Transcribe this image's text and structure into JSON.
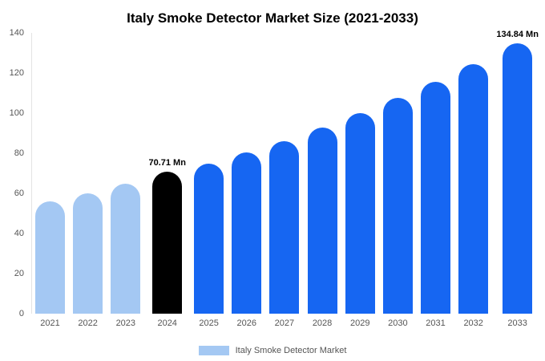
{
  "title": "Italy Smoke Detector Market Size (2021-2033)",
  "legend": {
    "label": "Italy Smoke Detector Market",
    "color": "#a4c8f3"
  },
  "colors": {
    "past_bar": "#a4c8f3",
    "highlight_bar": "#000000",
    "forecast_bar": "#1666f2",
    "axis_text": "#555555",
    "background": "#ffffff"
  },
  "chart_data": {
    "type": "bar",
    "title": "Italy Smoke Detector Market Size (2021-2033)",
    "xlabel": "",
    "ylabel": "",
    "categories": [
      "2021",
      "2022",
      "2023",
      "2024",
      "2025",
      "2026",
      "2027",
      "2028",
      "2029",
      "2030",
      "2031",
      "2032",
      "2033"
    ],
    "values": [
      56,
      60,
      65,
      70.71,
      75,
      80.5,
      86,
      93,
      100,
      107.5,
      115.5,
      124.5,
      134.84
    ],
    "bar_colors": [
      "#a4c8f3",
      "#a4c8f3",
      "#a4c8f3",
      "#000000",
      "#1666f2",
      "#1666f2",
      "#1666f2",
      "#1666f2",
      "#1666f2",
      "#1666f2",
      "#1666f2",
      "#1666f2",
      "#1666f2"
    ],
    "annotations": [
      {
        "index": 3,
        "text": "70.71 Mn"
      },
      {
        "index": 12,
        "text": "134.84 Mn"
      }
    ],
    "ylim": [
      0,
      140
    ],
    "yticks": [
      0,
      20,
      40,
      60,
      80,
      100,
      120,
      140
    ],
    "grid": false,
    "legend_position": "bottom",
    "legend_entries": [
      "Italy Smoke Detector Market"
    ]
  }
}
